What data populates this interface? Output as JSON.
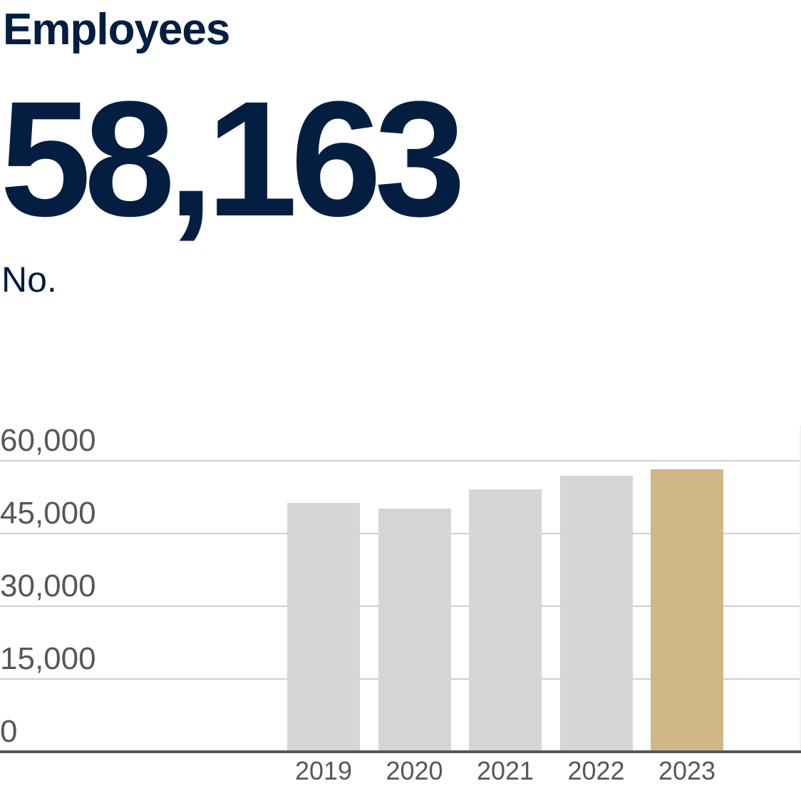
{
  "header": {
    "title": "Employees",
    "headline_value": "58,163",
    "unit": "No."
  },
  "colors": {
    "title": "#041e42",
    "bar_default": "#d6d6d4",
    "bar_highlight": "#ceb888",
    "axis": "#54585d",
    "grid": "#cfcfcf"
  },
  "chart_data": {
    "type": "bar",
    "title": "Employees",
    "subtitle": "No.",
    "headline": "58,163",
    "categories": [
      "2019",
      "2020",
      "2021",
      "2022",
      "2023"
    ],
    "values": [
      51300,
      50100,
      54100,
      56900,
      58163
    ],
    "highlight": "2023",
    "xlabel": "",
    "ylabel": "",
    "ylim": [
      0,
      60000
    ],
    "yticks": [
      0,
      15000,
      30000,
      45000,
      60000
    ],
    "ytick_labels": [
      "0",
      "15,000",
      "30,000",
      "45,000",
      "60,000"
    ],
    "grid": true,
    "legend": null
  }
}
